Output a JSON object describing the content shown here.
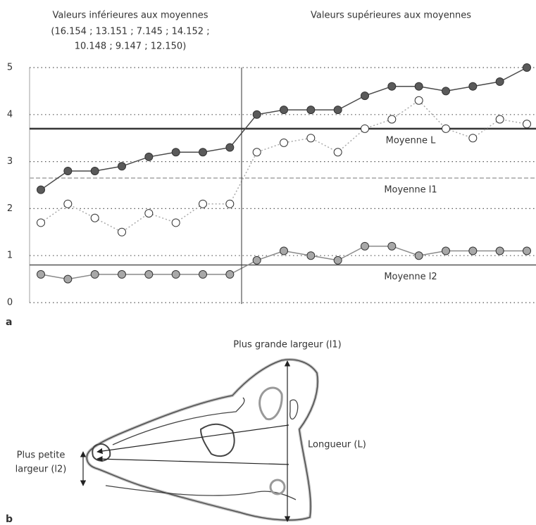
{
  "chart_data": {
    "type": "line",
    "header_left": [
      "Valeurs inférieures aux moyennes",
      "(16.154 ; 13.151 ; 7.145 ; 14.152 ;",
      "10.148 ; 9.147 ; 12.150)"
    ],
    "header_right": "Valeurs supérieures aux moyennes",
    "categories": [
      null,
      null,
      null,
      null,
      null,
      null,
      null,
      null,
      null,
      null,
      null,
      null,
      null,
      null,
      null,
      null,
      null,
      null,
      null
    ],
    "series": [
      {
        "color": "#4a4a4a",
        "marker_fill": "#5a5a5a",
        "dash": "none",
        "values": [
          2.4,
          2.8,
          2.8,
          2.9,
          3.1,
          3.2,
          3.2,
          3.3,
          4.0,
          4.1,
          4.1,
          4.1,
          4.4,
          4.6,
          4.6,
          4.5,
          4.6,
          4.7,
          5.0
        ]
      },
      {
        "color": "#aaaaaa",
        "marker_fill": "#ffffff",
        "dash": "2 3",
        "values": [
          1.7,
          2.1,
          1.8,
          1.5,
          1.9,
          1.7,
          2.1,
          2.1,
          3.2,
          3.4,
          3.5,
          3.2,
          3.7,
          3.9,
          4.3,
          3.7,
          3.5,
          3.9,
          3.8
        ]
      },
      {
        "color": "#8a8a8a",
        "marker_fill": "#a8a8a8",
        "dash": "none",
        "values": [
          0.6,
          0.5,
          0.6,
          0.6,
          0.6,
          0.6,
          0.6,
          0.6,
          0.9,
          1.1,
          1.0,
          0.9,
          1.2,
          1.2,
          1.0,
          1.1,
          1.1,
          1.1,
          1.1
        ]
      }
    ],
    "reference_lines": [
      {
        "value": 3.7,
        "label": "Moyenne L",
        "color": "#333333",
        "width": 2.5,
        "dash": "none"
      },
      {
        "value": 2.65,
        "label": "Moyenne l1",
        "color": "#bbbbbb",
        "width": 2,
        "dash": "6 3"
      },
      {
        "value": 0.8,
        "label": "Moyenne l2",
        "color": "#555555",
        "width": 1.5,
        "dash": "none"
      }
    ],
    "ylim": [
      0,
      5
    ],
    "yticks": [
      0,
      1,
      2,
      3,
      4,
      5
    ],
    "grid": true
  },
  "panels": [
    "a",
    "b"
  ],
  "diagram": {
    "annotations": [
      "Plus grande largeur (l1)",
      "Longueur (L)",
      "Plus petite",
      "largeur (l2)"
    ]
  }
}
